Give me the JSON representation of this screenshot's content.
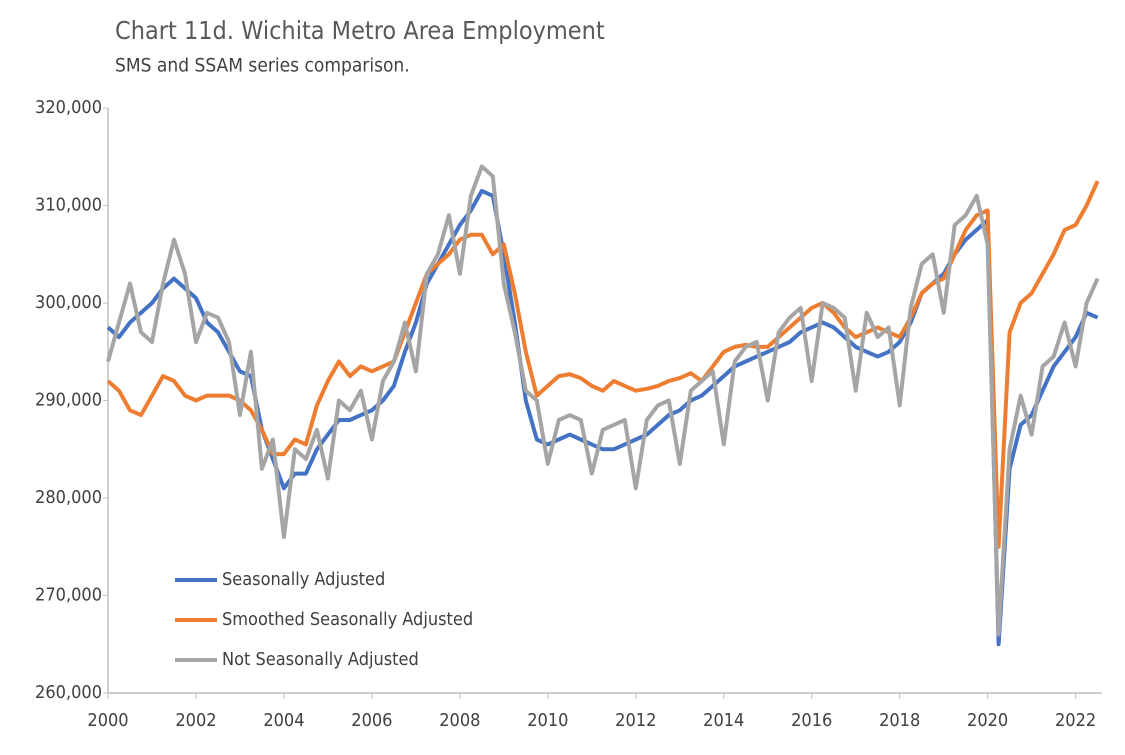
{
  "chart_data": {
    "type": "line",
    "title": "Chart 11d. Wichita Metro Area Employment",
    "subtitle": "SMS and SSAM series comparison.",
    "x": [
      2000,
      2000.25,
      2000.5,
      2000.75,
      2001,
      2001.25,
      2001.5,
      2001.75,
      2002,
      2002.25,
      2002.5,
      2002.75,
      2003,
      2003.25,
      2003.5,
      2003.75,
      2004,
      2004.25,
      2004.5,
      2004.75,
      2005,
      2005.25,
      2005.5,
      2005.75,
      2006,
      2006.25,
      2006.5,
      2006.75,
      2007,
      2007.25,
      2007.5,
      2007.75,
      2008,
      2008.25,
      2008.5,
      2008.75,
      2009,
      2009.25,
      2009.5,
      2009.75,
      2010,
      2010.25,
      2010.5,
      2010.75,
      2011,
      2011.25,
      2011.5,
      2011.75,
      2012,
      2012.25,
      2012.5,
      2012.75,
      2013,
      2013.25,
      2013.5,
      2013.75,
      2014,
      2014.25,
      2014.5,
      2014.75,
      2015,
      2015.25,
      2015.5,
      2015.75,
      2016,
      2016.25,
      2016.5,
      2016.75,
      2017,
      2017.25,
      2017.5,
      2017.75,
      2018,
      2018.25,
      2018.5,
      2018.75,
      2019,
      2019.25,
      2019.5,
      2019.75,
      2020,
      2020.25,
      2020.5,
      2020.75,
      2021,
      2021.25,
      2021.5,
      2021.75,
      2022,
      2022.25,
      2022.5
    ],
    "series": [
      {
        "name": "Seasonally Adjusted",
        "color": "#4472c4",
        "values": [
          297500,
          296500,
          298000,
          299000,
          300000,
          301500,
          302500,
          301500,
          300500,
          298000,
          297000,
          295000,
          293000,
          292500,
          287000,
          284000,
          281000,
          282500,
          282500,
          285000,
          286500,
          288000,
          288000,
          288500,
          289000,
          290000,
          291500,
          295000,
          298000,
          302000,
          304000,
          306000,
          308000,
          309500,
          311500,
          311000,
          305000,
          298000,
          290000,
          286000,
          285500,
          286000,
          286500,
          286000,
          285500,
          285000,
          285000,
          285500,
          286000,
          286500,
          287500,
          288500,
          289000,
          290000,
          290500,
          291500,
          292500,
          293500,
          294000,
          294500,
          295000,
          295500,
          296000,
          297000,
          297500,
          298000,
          297500,
          296500,
          295500,
          295000,
          294500,
          295000,
          296000,
          298000,
          301000,
          302000,
          303000,
          305000,
          306500,
          307500,
          308500,
          265000,
          283000,
          287500,
          288500,
          291000,
          293500,
          295000,
          296500,
          299000,
          298500
        ]
      },
      {
        "name": "Smoothed Seasonally Adjusted",
        "color": "#ed7d31",
        "values": [
          292000,
          291000,
          289000,
          288500,
          290500,
          292500,
          292000,
          290500,
          290000,
          290500,
          290500,
          290500,
          290000,
          289000,
          287000,
          284500,
          284500,
          286000,
          285500,
          289500,
          292000,
          294000,
          292500,
          293500,
          293000,
          293500,
          294000,
          297000,
          300000,
          303000,
          304000,
          305000,
          306500,
          307000,
          307000,
          305000,
          306000,
          301000,
          295000,
          290500,
          291500,
          292500,
          292700,
          292300,
          291500,
          291000,
          292000,
          291500,
          291000,
          291200,
          291500,
          292000,
          292300,
          292800,
          292000,
          293500,
          295000,
          295500,
          295700,
          295500,
          295500,
          296500,
          297500,
          298500,
          299500,
          300000,
          299000,
          297500,
          296500,
          297000,
          297500,
          297000,
          296500,
          298500,
          301000,
          302000,
          302500,
          305000,
          307500,
          309000,
          309500,
          275000,
          297000,
          300000,
          301000,
          303000,
          305000,
          307500,
          308000,
          310000,
          312500
        ]
      },
      {
        "name": "Not Seasonally Adjusted",
        "color": "#a5a5a5",
        "values": [
          294000,
          298000,
          302000,
          297000,
          296000,
          302000,
          306500,
          303000,
          296000,
          299000,
          298500,
          296000,
          288500,
          295000,
          283000,
          286000,
          276000,
          285000,
          284000,
          287000,
          282000,
          290000,
          289000,
          291000,
          286000,
          292000,
          294000,
          298000,
          293000,
          303000,
          305000,
          309000,
          303000,
          311000,
          314000,
          313000,
          302000,
          297000,
          291000,
          290000,
          283500,
          288000,
          288500,
          288000,
          282500,
          287000,
          287500,
          288000,
          281000,
          288000,
          289500,
          290000,
          283500,
          291000,
          292000,
          293000,
          285500,
          294000,
          295500,
          296000,
          290000,
          297000,
          298500,
          299500,
          292000,
          300000,
          299500,
          298500,
          291000,
          299000,
          296500,
          297500,
          289500,
          299500,
          304000,
          305000,
          299000,
          308000,
          309000,
          311000,
          306000,
          266000,
          285000,
          290500,
          286500,
          293500,
          294500,
          298000,
          293500,
          300000,
          302500
        ]
      }
    ],
    "xlim": [
      2000,
      2022.6
    ],
    "xticks": [
      2000,
      2002,
      2004,
      2006,
      2008,
      2010,
      2012,
      2014,
      2016,
      2018,
      2020,
      2022
    ],
    "ylim": [
      260000,
      320000
    ],
    "yticks": [
      {
        "value": 260000,
        "label": "260,000"
      },
      {
        "value": 270000,
        "label": "270,000"
      },
      {
        "value": 280000,
        "label": "280,000"
      },
      {
        "value": 290000,
        "label": "290,000"
      },
      {
        "value": 300000,
        "label": "300,000"
      },
      {
        "value": 310000,
        "label": "310,000"
      },
      {
        "value": 320000,
        "label": "320,000"
      }
    ],
    "grid": false,
    "legend": "lower left"
  }
}
